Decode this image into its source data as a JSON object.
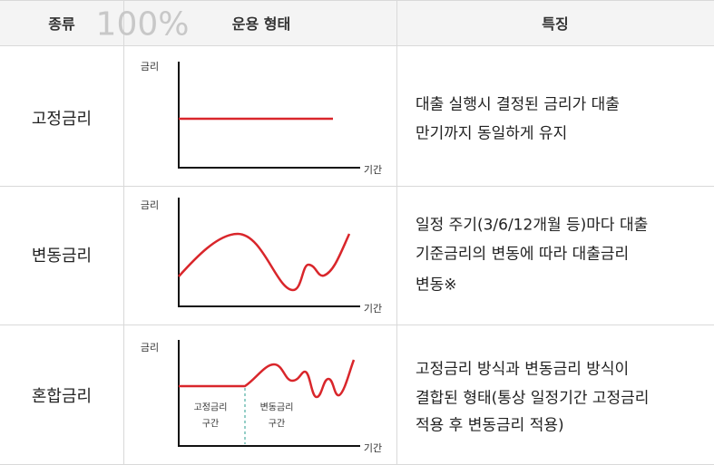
{
  "header": {
    "columns": [
      "종류",
      "운용 형태",
      "특징"
    ],
    "watermark": "100%"
  },
  "rows": [
    {
      "type": "고정금리",
      "chart": {
        "y_label": "금리",
        "x_label": "기간"
      },
      "description": [
        "대출 실행시 결정된 금리가 대출",
        "만기까지 동일하게 유지"
      ]
    },
    {
      "type": "변동금리",
      "chart": {
        "y_label": "금리",
        "x_label": "기간"
      },
      "description": [
        "일정 주기(3/6/12개월 등)마다 대출",
        "기준금리의 변동에 따라 대출금리",
        "변동※"
      ]
    },
    {
      "type": "혼합금리",
      "chart": {
        "y_label": "금리",
        "x_label": "기간",
        "zones": [
          [
            "고정금리",
            "구간"
          ],
          [
            "변동금리",
            "구간"
          ]
        ]
      },
      "description": [
        "고정금리 방식과 변동금리 방식이",
        "결합된 형태(통상 일정기간 고정금리",
        "적용 후 변동금리 적용)"
      ]
    }
  ]
}
